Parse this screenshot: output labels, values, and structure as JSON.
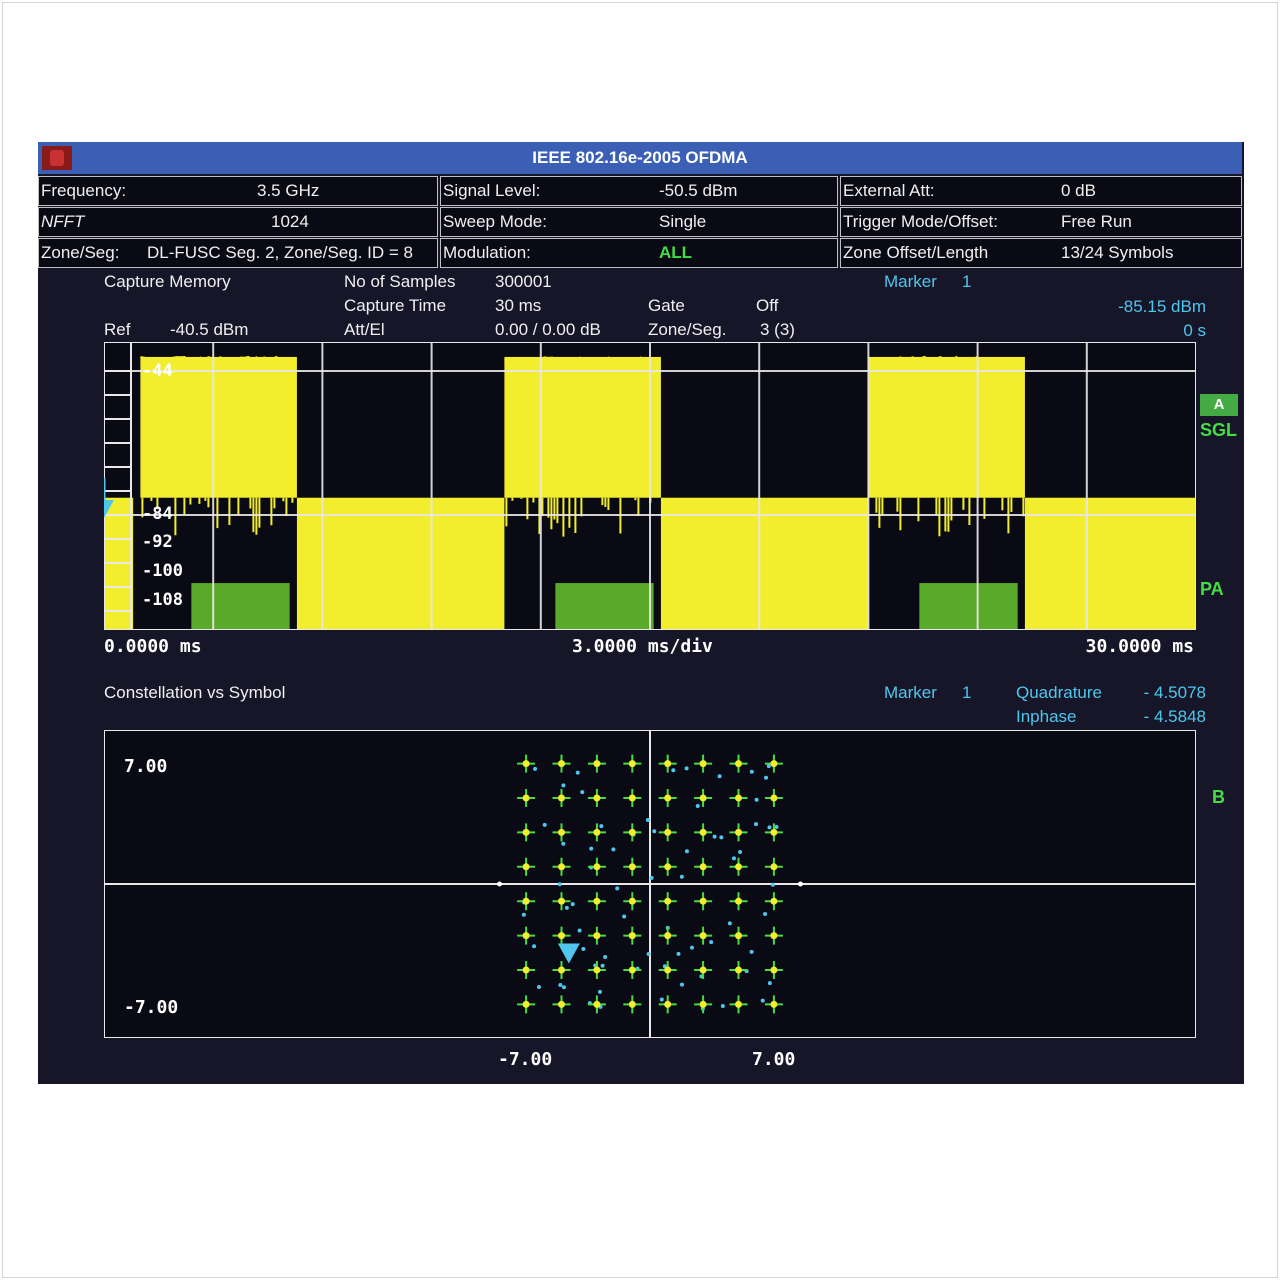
{
  "window": {
    "title": "IEEE 802.16e-2005 OFDMA"
  },
  "params": [
    [
      {
        "label": "Frequency:",
        "value": "3.5 GHz"
      },
      {
        "label": "Signal Level:",
        "value": "-50.5 dBm"
      },
      {
        "label": "External Att:",
        "value": "0 dB"
      }
    ],
    [
      {
        "label": "NFFT",
        "value": "1024"
      },
      {
        "label": "Sweep Mode:",
        "value": "Single"
      },
      {
        "label": "Trigger Mode/Offset:",
        "value": "Free Run"
      }
    ],
    [
      {
        "label": "Zone/Seg:",
        "value": "DL-FUSC Seg. 2, Zone/Seg. ID = 8"
      },
      {
        "label": "Modulation:",
        "value": "ALL"
      },
      {
        "label": "Zone Offset/Length",
        "value": "13/24 Symbols"
      }
    ]
  ],
  "capture": {
    "title": "Capture Memory",
    "ref_label": "Ref",
    "ref_value": "-40.5 dBm",
    "samples_label": "No of Samples",
    "samples_value": "300001",
    "time_label": "Capture Time",
    "time_value": "30 ms",
    "att_label": "Att/El",
    "att_value": "0.00 / 0.00 dB",
    "gate_label": "Gate",
    "gate_value": "Off",
    "zone_label": "Zone/Seg.",
    "zone_value": "3 (3)",
    "marker_label": "Marker",
    "marker_num": "1",
    "marker_level": "-85.15 dBm",
    "marker_time": "0 s",
    "y_labels": [
      "-44",
      "-84",
      "-92",
      "-100",
      "-108"
    ],
    "x_start": "0.0000 ms",
    "x_div": "3.0000 ms/div",
    "x_end": "30.0000 ms",
    "badge": "A",
    "sgl": "SGL",
    "pa": "PA",
    "colors": {
      "trace": "#f2ee2e",
      "gate_region": "#5aaa2a",
      "grid": "#e8e8e8"
    },
    "chart_data": {
      "type": "line",
      "x_range": [
        0,
        30
      ],
      "x_unit": "ms",
      "y_range": [
        -108,
        -40.5
      ],
      "y_unit": "dBm",
      "bursts": [
        {
          "start": 1,
          "end": 5.3,
          "level": -44
        },
        {
          "start": 11,
          "end": 15.3,
          "level": -44
        },
        {
          "start": 21,
          "end": 25.3,
          "level": -44
        }
      ],
      "floor_segments": [
        {
          "start": 0,
          "end": 0.8,
          "level": -77
        },
        {
          "start": 5.3,
          "end": 11,
          "level": -77
        },
        {
          "start": 15.3,
          "end": 21,
          "level": -77
        },
        {
          "start": 25.3,
          "end": 30,
          "level": -77
        }
      ],
      "gate_regions": [
        {
          "start": 2.4,
          "end": 5.1
        },
        {
          "start": 12.4,
          "end": 15.1
        },
        {
          "start": 22.4,
          "end": 25.1
        }
      ]
    }
  },
  "constellation": {
    "title": "Constellation vs Symbol",
    "marker_label": "Marker",
    "marker_num": "1",
    "quad_label": "Quadrature",
    "quad_value": "- 4.5078",
    "inphase_label": "Inphase",
    "inphase_value": "- 4.5848",
    "y_top": "7.00",
    "y_bottom": "-7.00",
    "x_left": "-7.00",
    "x_right": "7.00",
    "side": "B",
    "colors": {
      "point": "#f2ee2e",
      "stem": "#44dd44",
      "scatter": "#4ec6ee"
    },
    "chart_data": {
      "type": "scatter",
      "x_range": [
        -7,
        7
      ],
      "y_range": [
        -7,
        7
      ],
      "levels": [
        -7,
        -5,
        -3,
        -1,
        1,
        3,
        5,
        7
      ],
      "marker": {
        "x": -4.5848,
        "y": -4.5078
      }
    }
  }
}
